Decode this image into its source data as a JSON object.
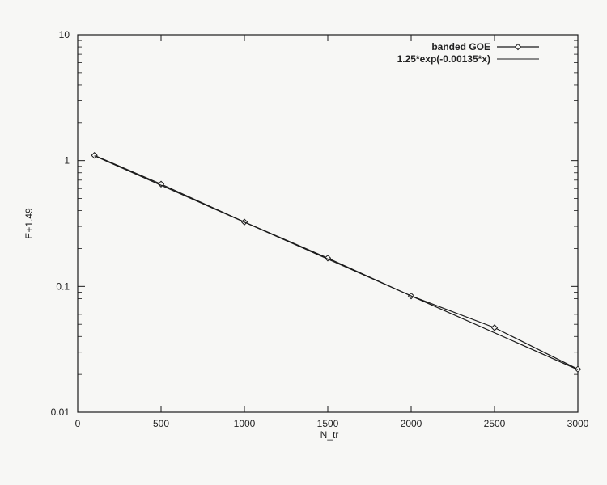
{
  "chart_data": {
    "type": "line",
    "title": "",
    "xlabel": "N_tr",
    "ylabel": "E+1.49",
    "xlim": [
      0,
      3000
    ],
    "ylim": [
      0.01,
      10
    ],
    "yscale": "log",
    "grid": false,
    "legend_position": "top-right",
    "xticks": [
      0,
      500,
      1000,
      1500,
      2000,
      2500,
      3000
    ],
    "xtick_labels": [
      "0",
      "500",
      "1000",
      "1500",
      "2000",
      "2500",
      "3000"
    ],
    "yticks": [
      0.01,
      0.1,
      1,
      10
    ],
    "ytick_labels": [
      "0.01",
      "0.1",
      "1",
      "10"
    ],
    "series": [
      {
        "name": "banded GOE",
        "style": "line-with-diamond-markers",
        "x": [
          100,
          500,
          1000,
          1500,
          2000,
          2500,
          3000
        ],
        "y": [
          1.1,
          0.65,
          0.325,
          0.168,
          0.084,
          0.047,
          0.022
        ]
      },
      {
        "name": "1.25*exp(-0.00135*x)",
        "style": "line",
        "x": [
          100,
          3000
        ],
        "y": [
          1.092,
          0.0218
        ]
      }
    ],
    "colors": {
      "line": "#1a1a1a",
      "background": "#f7f7f5"
    }
  }
}
